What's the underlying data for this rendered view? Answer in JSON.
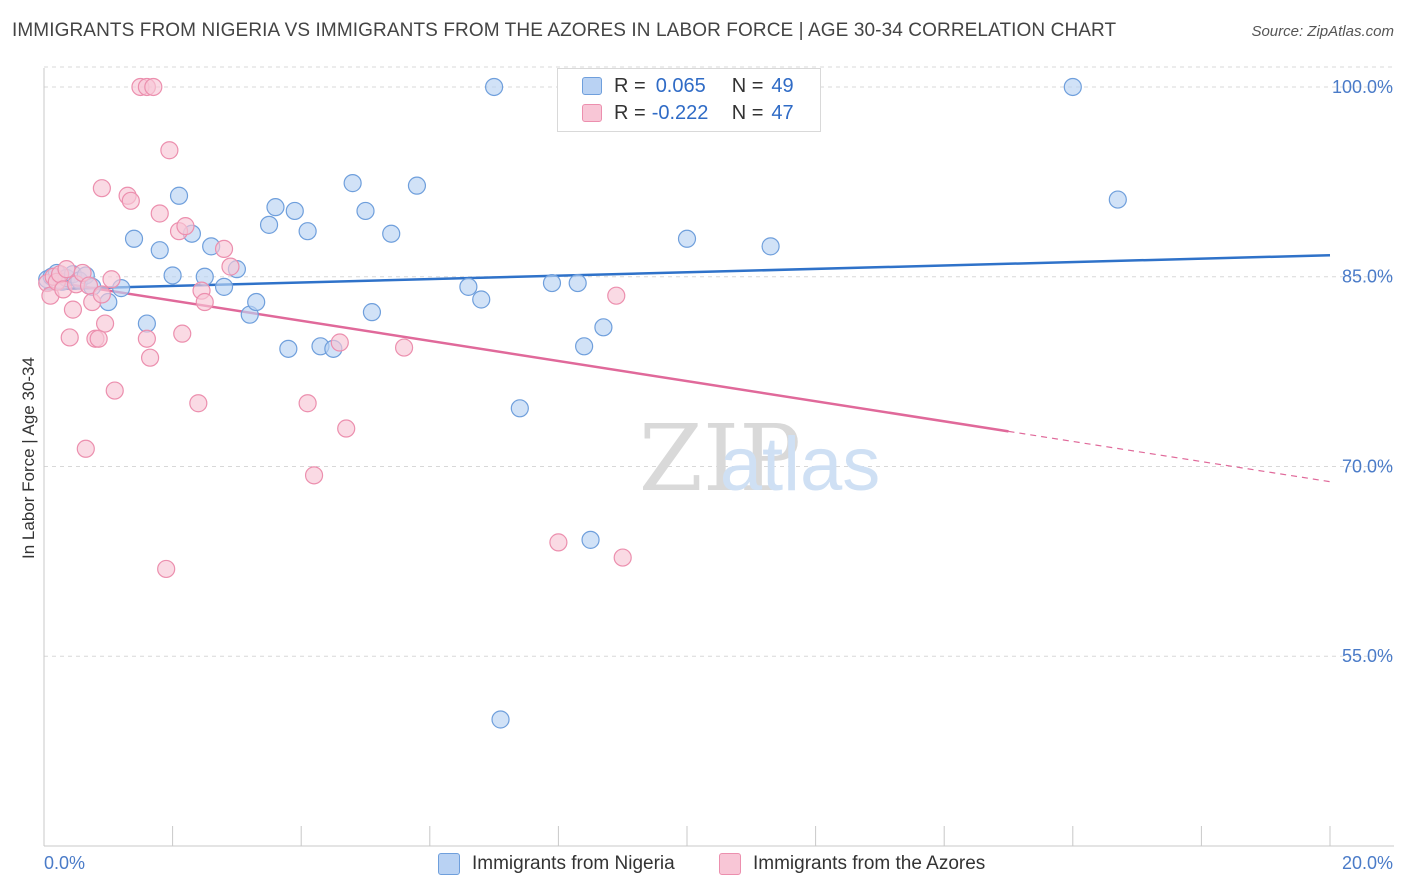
{
  "title": "IMMIGRANTS FROM NIGERIA VS IMMIGRANTS FROM THE AZORES IN LABOR FORCE | AGE 30-34 CORRELATION CHART",
  "source": "Source: ZipAtlas.com",
  "watermark": {
    "zip": "ZIP",
    "atlas": "atlas"
  },
  "colors": {
    "nigeria_fill": "#b9d2f3",
    "nigeria_stroke": "#6f9fdc",
    "nigeria_line": "#2f72c9",
    "azores_fill": "#f8c6d6",
    "azores_stroke": "#ec8fae",
    "azores_line": "#e0699a",
    "tick_text": "#4a7bc8",
    "grid": "#d8d8d8"
  },
  "legend": {
    "rows": [
      {
        "r_label": "R =",
        "r_value": "0.065",
        "n_label": "N =",
        "n_value": "49"
      },
      {
        "r_label": "R =",
        "r_value": "-0.222",
        "n_label": "N =",
        "n_value": "47"
      }
    ]
  },
  "chart_data": {
    "type": "scatter",
    "xlabel": "",
    "ylabel": "In Labor Force | Age 30-34",
    "xlim": [
      0,
      20
    ],
    "ylim": [
      40,
      101.5
    ],
    "x_tick_labels": [
      {
        "value": 0,
        "label": "0.0%"
      },
      {
        "value": 20,
        "label": "20.0%"
      }
    ],
    "y_tick_labels": [
      {
        "value": 100,
        "label": "100.0%"
      },
      {
        "value": 85,
        "label": "85.0%"
      },
      {
        "value": 70,
        "label": "70.0%"
      },
      {
        "value": 55,
        "label": "55.0%"
      }
    ],
    "y_gridlines": [
      100,
      85,
      70,
      55
    ],
    "x_minor_ticks": [
      2,
      4,
      6,
      8,
      10,
      12,
      14,
      16,
      18,
      20
    ],
    "series": [
      {
        "name": "Immigrants from Nigeria",
        "r": 0.065,
        "n": 49,
        "trend": {
          "x0": 0,
          "y0": 84.0,
          "x1": 20,
          "y1": 86.7,
          "solid_to": 20
        },
        "points": [
          [
            0.05,
            84.8
          ],
          [
            0.12,
            85.0
          ],
          [
            0.2,
            85.3
          ],
          [
            0.28,
            84.6
          ],
          [
            0.35,
            84.9
          ],
          [
            0.45,
            85.2
          ],
          [
            0.55,
            84.7
          ],
          [
            0.65,
            85.1
          ],
          [
            0.75,
            84.2
          ],
          [
            1.0,
            83.0
          ],
          [
            1.2,
            84.1
          ],
          [
            1.4,
            88.0
          ],
          [
            1.6,
            81.3
          ],
          [
            1.8,
            87.1
          ],
          [
            2.0,
            85.1
          ],
          [
            2.1,
            91.4
          ],
          [
            2.3,
            88.4
          ],
          [
            2.5,
            85.0
          ],
          [
            2.6,
            87.4
          ],
          [
            2.8,
            84.2
          ],
          [
            3.0,
            85.6
          ],
          [
            3.2,
            82.0
          ],
          [
            3.3,
            83.0
          ],
          [
            3.5,
            89.1
          ],
          [
            3.6,
            90.5
          ],
          [
            3.8,
            79.3
          ],
          [
            3.9,
            90.2
          ],
          [
            4.1,
            88.6
          ],
          [
            4.3,
            79.5
          ],
          [
            4.5,
            79.3
          ],
          [
            4.8,
            92.4
          ],
          [
            5.0,
            90.2
          ],
          [
            5.1,
            82.2
          ],
          [
            5.4,
            88.4
          ],
          [
            5.8,
            92.2
          ],
          [
            6.6,
            84.2
          ],
          [
            6.8,
            83.2
          ],
          [
            7.0,
            100.0
          ],
          [
            7.1,
            50.0
          ],
          [
            7.4,
            74.6
          ],
          [
            7.9,
            84.5
          ],
          [
            8.3,
            84.5
          ],
          [
            8.4,
            79.5
          ],
          [
            8.5,
            64.2
          ],
          [
            8.7,
            81.0
          ],
          [
            10.0,
            88.0
          ],
          [
            11.3,
            87.4
          ],
          [
            16.0,
            100.0
          ],
          [
            16.7,
            91.1
          ]
        ]
      },
      {
        "name": "Immigrants from the Azores",
        "r": -0.222,
        "n": 47,
        "trend": {
          "x0": 0,
          "y0": 84.7,
          "x1": 20,
          "y1": 68.8,
          "solid_to": 15.0
        },
        "points": [
          [
            0.05,
            84.5
          ],
          [
            0.1,
            83.5
          ],
          [
            0.15,
            85.0
          ],
          [
            0.2,
            84.6
          ],
          [
            0.25,
            85.2
          ],
          [
            0.3,
            84.0
          ],
          [
            0.35,
            85.6
          ],
          [
            0.4,
            80.2
          ],
          [
            0.45,
            82.4
          ],
          [
            0.5,
            84.4
          ],
          [
            0.6,
            85.3
          ],
          [
            0.65,
            71.4
          ],
          [
            0.7,
            84.3
          ],
          [
            0.75,
            83.0
          ],
          [
            0.8,
            80.1
          ],
          [
            0.85,
            80.1
          ],
          [
            0.9,
            83.6
          ],
          [
            0.9,
            92.0
          ],
          [
            0.95,
            81.3
          ],
          [
            1.05,
            84.8
          ],
          [
            1.1,
            76.0
          ],
          [
            1.3,
            91.4
          ],
          [
            1.35,
            91.0
          ],
          [
            1.5,
            100.0
          ],
          [
            1.6,
            100.0
          ],
          [
            1.6,
            80.1
          ],
          [
            1.65,
            78.6
          ],
          [
            1.7,
            100.0
          ],
          [
            1.8,
            90.0
          ],
          [
            1.9,
            61.9
          ],
          [
            1.95,
            95.0
          ],
          [
            2.1,
            88.6
          ],
          [
            2.15,
            80.5
          ],
          [
            2.2,
            89.0
          ],
          [
            2.4,
            75.0
          ],
          [
            2.45,
            83.9
          ],
          [
            2.5,
            83.0
          ],
          [
            2.8,
            87.2
          ],
          [
            2.9,
            85.8
          ],
          [
            4.1,
            75.0
          ],
          [
            4.2,
            69.3
          ],
          [
            4.6,
            79.8
          ],
          [
            4.7,
            73.0
          ],
          [
            5.6,
            79.4
          ],
          [
            8.0,
            64.0
          ],
          [
            8.9,
            83.5
          ],
          [
            9.0,
            62.8
          ]
        ]
      }
    ]
  },
  "bottom_legend": [
    {
      "label": "Immigrants from Nigeria"
    },
    {
      "label": "Immigrants from the Azores"
    }
  ]
}
